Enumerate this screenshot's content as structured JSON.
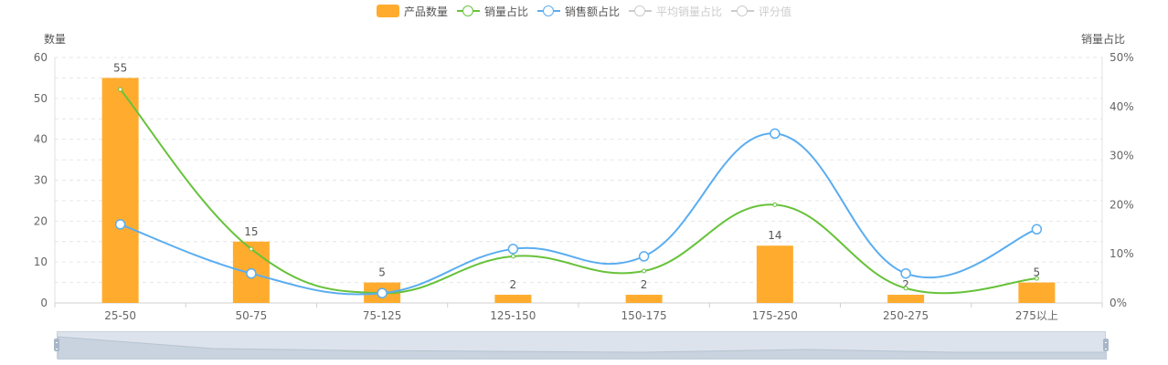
{
  "legend": [
    {
      "label": "产品数量",
      "kind": "bar",
      "color": "#FFAC2E",
      "active": true
    },
    {
      "label": "销量占比",
      "kind": "line",
      "color": "#67C23A",
      "active": true
    },
    {
      "label": "销售额占比",
      "kind": "line",
      "color": "#5AADF0",
      "active": true
    },
    {
      "label": "平均销量占比",
      "kind": "line",
      "color": "#cccccc",
      "active": false
    },
    {
      "label": "评分值",
      "kind": "line",
      "color": "#cccccc",
      "active": false
    }
  ],
  "axes": {
    "left_name": "数量",
    "right_name": "销量占比"
  },
  "chart_data": {
    "type": "bar",
    "categories": [
      "25-50",
      "50-75",
      "75-125",
      "125-150",
      "150-175",
      "175-250",
      "250-275",
      "275以上"
    ],
    "series": [
      {
        "name": "产品数量",
        "type": "bar",
        "axis": "left",
        "color": "#FFAC2E",
        "values": [
          55,
          15,
          5,
          2,
          2,
          14,
          2,
          5
        ]
      },
      {
        "name": "销量占比",
        "type": "line",
        "axis": "right",
        "color": "#67C23A",
        "values": [
          43.5,
          11,
          2,
          9.5,
          6.5,
          20,
          3,
          5
        ]
      },
      {
        "name": "销售额占比",
        "type": "line",
        "axis": "right",
        "color": "#5AADF0",
        "values": [
          16,
          6,
          2,
          11,
          9.5,
          34.5,
          6,
          15
        ]
      }
    ],
    "y_left": {
      "min": 0,
      "max": 60,
      "ticks": [
        "0",
        "10",
        "20",
        "30",
        "40",
        "50",
        "60"
      ]
    },
    "y_right": {
      "min": 0,
      "max": 50,
      "ticks": [
        "0%",
        "10%",
        "20%",
        "30%",
        "40%",
        "50%"
      ]
    },
    "grid": true,
    "legend_position": "top-center",
    "data_zoom": true
  }
}
